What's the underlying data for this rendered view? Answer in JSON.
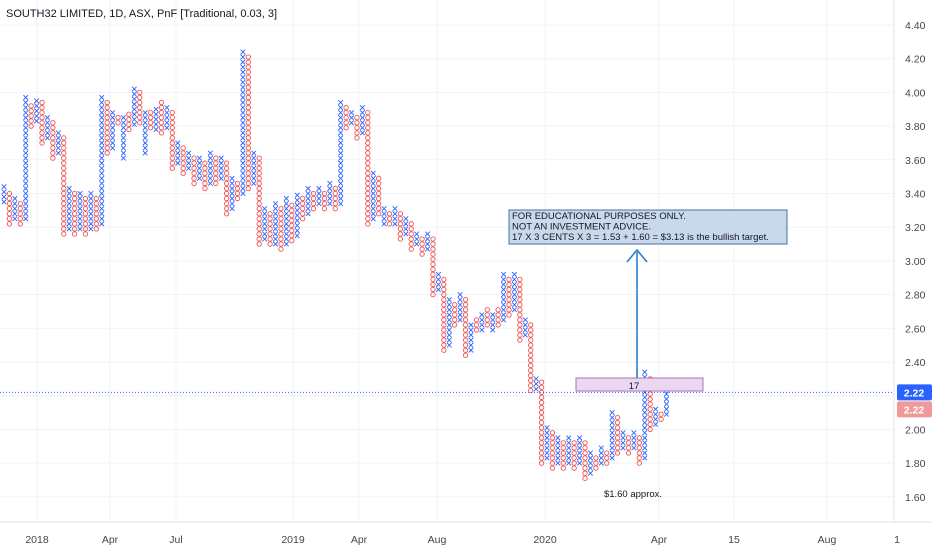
{
  "chart_data": {
    "type": "point-and-figure",
    "title": "SOUTH32 LIMITED, 1D, ASX, PnF [Traditional, 0.03, 3]",
    "box_size": 0.03,
    "reversal": 3,
    "ylim": [
      1.45,
      4.5
    ],
    "y_ticks": [
      "4.40",
      "4.20",
      "4.00",
      "3.80",
      "3.60",
      "3.40",
      "3.20",
      "3.00",
      "2.80",
      "2.60",
      "2.40",
      "2.20",
      "2.00",
      "1.80",
      "1.60"
    ],
    "x_tick_labels": [
      "2018",
      "Apr",
      "Jul",
      "2019",
      "Apr",
      "Aug",
      "2020",
      "Apr",
      "15",
      "Aug",
      "1"
    ],
    "columns": [
      {
        "t": "X",
        "lo": 3.35,
        "hi": 3.43
      },
      {
        "t": "O",
        "lo": 3.22,
        "hi": 3.4
      },
      {
        "t": "X",
        "lo": 3.25,
        "hi": 3.37
      },
      {
        "t": "O",
        "lo": 3.22,
        "hi": 3.34
      },
      {
        "t": "X",
        "lo": 3.25,
        "hi": 3.96
      },
      {
        "t": "O",
        "lo": 3.8,
        "hi": 3.93
      },
      {
        "t": "X",
        "lo": 3.83,
        "hi": 3.96
      },
      {
        "t": "O",
        "lo": 3.7,
        "hi": 3.93
      },
      {
        "t": "X",
        "lo": 3.73,
        "hi": 3.84
      },
      {
        "t": "O",
        "lo": 3.61,
        "hi": 3.81
      },
      {
        "t": "X",
        "lo": 3.64,
        "hi": 3.76
      },
      {
        "t": "O",
        "lo": 3.16,
        "hi": 3.73
      },
      {
        "t": "X",
        "lo": 3.19,
        "hi": 3.42
      },
      {
        "t": "O",
        "lo": 3.16,
        "hi": 3.39
      },
      {
        "t": "X",
        "lo": 3.19,
        "hi": 3.39
      },
      {
        "t": "O",
        "lo": 3.16,
        "hi": 3.36
      },
      {
        "t": "X",
        "lo": 3.19,
        "hi": 3.39
      },
      {
        "t": "O",
        "lo": 3.19,
        "hi": 3.36
      },
      {
        "t": "X",
        "lo": 3.22,
        "hi": 3.96
      },
      {
        "t": "O",
        "lo": 3.64,
        "hi": 3.93
      },
      {
        "t": "X",
        "lo": 3.67,
        "hi": 3.87
      },
      {
        "t": "O",
        "lo": 3.82,
        "hi": 3.84
      },
      {
        "t": "X",
        "lo": 3.61,
        "hi": 3.84
      },
      {
        "t": "O",
        "lo": 3.78,
        "hi": 3.87
      },
      {
        "t": "X",
        "lo": 3.81,
        "hi": 4.02
      },
      {
        "t": "O",
        "lo": 3.82,
        "hi": 3.99
      },
      {
        "t": "X",
        "lo": 3.64,
        "hi": 3.88
      },
      {
        "t": "O",
        "lo": 3.79,
        "hi": 3.88
      },
      {
        "t": "X",
        "lo": 3.78,
        "hi": 3.9
      },
      {
        "t": "O",
        "lo": 3.76,
        "hi": 3.93
      },
      {
        "t": "X",
        "lo": 3.79,
        "hi": 3.9
      },
      {
        "t": "O",
        "lo": 3.55,
        "hi": 3.87
      },
      {
        "t": "X",
        "lo": 3.58,
        "hi": 3.7
      },
      {
        "t": "O",
        "lo": 3.52,
        "hi": 3.67
      },
      {
        "t": "X",
        "lo": 3.55,
        "hi": 3.64
      },
      {
        "t": "O",
        "lo": 3.46,
        "hi": 3.61
      },
      {
        "t": "X",
        "lo": 3.49,
        "hi": 3.61
      },
      {
        "t": "O",
        "lo": 3.43,
        "hi": 3.58
      },
      {
        "t": "X",
        "lo": 3.46,
        "hi": 3.64
      },
      {
        "t": "O",
        "lo": 3.46,
        "hi": 3.61
      },
      {
        "t": "X",
        "lo": 3.49,
        "hi": 3.61
      },
      {
        "t": "O",
        "lo": 3.28,
        "hi": 3.58
      },
      {
        "t": "X",
        "lo": 3.31,
        "hi": 3.48
      },
      {
        "t": "O",
        "lo": 3.37,
        "hi": 3.45
      },
      {
        "t": "X",
        "lo": 3.4,
        "hi": 4.23
      },
      {
        "t": "O",
        "lo": 3.43,
        "hi": 4.2
      },
      {
        "t": "X",
        "lo": 3.46,
        "hi": 3.64
      },
      {
        "t": "O",
        "lo": 3.1,
        "hi": 3.61
      },
      {
        "t": "X",
        "lo": 3.13,
        "hi": 3.3
      },
      {
        "t": "O",
        "lo": 3.1,
        "hi": 3.27
      },
      {
        "t": "X",
        "lo": 3.1,
        "hi": 3.34
      },
      {
        "t": "O",
        "lo": 3.07,
        "hi": 3.31
      },
      {
        "t": "X",
        "lo": 3.1,
        "hi": 3.36
      },
      {
        "t": "O",
        "lo": 3.12,
        "hi": 3.33
      },
      {
        "t": "X",
        "lo": 3.15,
        "hi": 3.39
      },
      {
        "t": "O",
        "lo": 3.25,
        "hi": 3.36
      },
      {
        "t": "X",
        "lo": 3.28,
        "hi": 3.43
      },
      {
        "t": "O",
        "lo": 3.31,
        "hi": 3.4
      },
      {
        "t": "X",
        "lo": 3.34,
        "hi": 3.43
      },
      {
        "t": "O",
        "lo": 3.31,
        "hi": 3.4
      },
      {
        "t": "X",
        "lo": 3.34,
        "hi": 3.46
      },
      {
        "t": "O",
        "lo": 3.31,
        "hi": 3.43
      },
      {
        "t": "X",
        "lo": 3.34,
        "hi": 3.93
      },
      {
        "t": "O",
        "lo": 3.79,
        "hi": 3.9
      },
      {
        "t": "X",
        "lo": 3.82,
        "hi": 3.88
      },
      {
        "t": "O",
        "lo": 3.73,
        "hi": 3.85
      },
      {
        "t": "X",
        "lo": 3.76,
        "hi": 3.9
      },
      {
        "t": "O",
        "lo": 3.22,
        "hi": 3.87
      },
      {
        "t": "X",
        "lo": 3.25,
        "hi": 3.52
      },
      {
        "t": "O",
        "lo": 3.28,
        "hi": 3.49
      },
      {
        "t": "X",
        "lo": 3.22,
        "hi": 3.3
      },
      {
        "t": "O",
        "lo": 3.22,
        "hi": 3.27
      },
      {
        "t": "X",
        "lo": 3.22,
        "hi": 3.3
      },
      {
        "t": "O",
        "lo": 3.13,
        "hi": 3.27
      },
      {
        "t": "X",
        "lo": 3.16,
        "hi": 3.25
      },
      {
        "t": "O",
        "lo": 3.07,
        "hi": 3.22
      },
      {
        "t": "X",
        "lo": 3.1,
        "hi": 3.16
      },
      {
        "t": "O",
        "lo": 3.04,
        "hi": 3.13
      },
      {
        "t": "X",
        "lo": 3.07,
        "hi": 3.16
      },
      {
        "t": "O",
        "lo": 2.8,
        "hi": 3.13
      },
      {
        "t": "X",
        "lo": 2.83,
        "hi": 2.92
      },
      {
        "t": "O",
        "lo": 2.47,
        "hi": 2.89
      },
      {
        "t": "X",
        "lo": 2.5,
        "hi": 2.77
      },
      {
        "t": "O",
        "lo": 2.62,
        "hi": 2.74
      },
      {
        "t": "X",
        "lo": 2.65,
        "hi": 2.8
      },
      {
        "t": "O",
        "lo": 2.44,
        "hi": 2.77
      },
      {
        "t": "X",
        "lo": 2.47,
        "hi": 2.62
      },
      {
        "t": "O",
        "lo": 2.59,
        "hi": 2.65
      },
      {
        "t": "X",
        "lo": 2.59,
        "hi": 2.68
      },
      {
        "t": "O",
        "lo": 2.62,
        "hi": 2.71
      },
      {
        "t": "X",
        "lo": 2.59,
        "hi": 2.68
      },
      {
        "t": "O",
        "lo": 2.62,
        "hi": 2.71
      },
      {
        "t": "X",
        "lo": 2.65,
        "hi": 2.92
      },
      {
        "t": "O",
        "lo": 2.68,
        "hi": 2.89
      },
      {
        "t": "X",
        "lo": 2.71,
        "hi": 2.92
      },
      {
        "t": "O",
        "lo": 2.53,
        "hi": 2.89
      },
      {
        "t": "X",
        "lo": 2.56,
        "hi": 2.65
      },
      {
        "t": "O",
        "lo": 2.23,
        "hi": 2.62
      },
      {
        "t": "X",
        "lo": 2.24,
        "hi": 2.3
      },
      {
        "t": "O",
        "lo": 1.8,
        "hi": 2.27
      },
      {
        "t": "X",
        "lo": 1.83,
        "hi": 2.0
      },
      {
        "t": "O",
        "lo": 1.77,
        "hi": 1.97
      },
      {
        "t": "X",
        "lo": 1.8,
        "hi": 1.94
      },
      {
        "t": "O",
        "lo": 1.77,
        "hi": 1.91
      },
      {
        "t": "X",
        "lo": 1.8,
        "hi": 1.94
      },
      {
        "t": "O",
        "lo": 1.77,
        "hi": 1.91
      },
      {
        "t": "X",
        "lo": 1.8,
        "hi": 1.94
      },
      {
        "t": "O",
        "lo": 1.71,
        "hi": 1.91
      },
      {
        "t": "X",
        "lo": 1.74,
        "hi": 1.86
      },
      {
        "t": "O",
        "lo": 1.77,
        "hi": 1.83
      },
      {
        "t": "X",
        "lo": 1.8,
        "hi": 1.89
      },
      {
        "t": "O",
        "lo": 1.8,
        "hi": 1.86
      },
      {
        "t": "X",
        "lo": 1.83,
        "hi": 2.09
      },
      {
        "t": "O",
        "lo": 1.86,
        "hi": 2.06
      },
      {
        "t": "X",
        "lo": 1.89,
        "hi": 1.97
      },
      {
        "t": "O",
        "lo": 1.86,
        "hi": 1.94
      },
      {
        "t": "X",
        "lo": 1.89,
        "hi": 1.97
      },
      {
        "t": "O",
        "lo": 1.8,
        "hi": 1.94
      },
      {
        "t": "X",
        "lo": 1.83,
        "hi": 2.33
      },
      {
        "t": "O",
        "lo": 2.0,
        "hi": 2.3
      },
      {
        "t": "X",
        "lo": 2.03,
        "hi": 2.12
      },
      {
        "t": "O",
        "lo": 2.06,
        "hi": 2.09
      },
      {
        "t": "X",
        "lo": 2.09,
        "hi": 2.21
      }
    ],
    "last_price": "2.22",
    "previous_close": "2.22",
    "annotations": {
      "note_lines": [
        "FOR EDUCATIONAL PURPOSES ONLY.",
        "NOT AN INVESTMENT ADVICE.",
        "17 X 3 CENTS X 3 = 1.53 + 1.60 = $3.13 is the bullish target."
      ],
      "count_label": "17",
      "low_label": "$1.60 approx."
    }
  },
  "colors": {
    "x_color": "#2962ff",
    "o_color": "#ef5350",
    "last_tag": "#2962ff",
    "prev_tag": "#ef9a9a",
    "note_bg": "#c9d9ec",
    "count_bg": "#e9d8f0",
    "arrow": "#2b7fd2",
    "grid": "#f0f3fa"
  }
}
